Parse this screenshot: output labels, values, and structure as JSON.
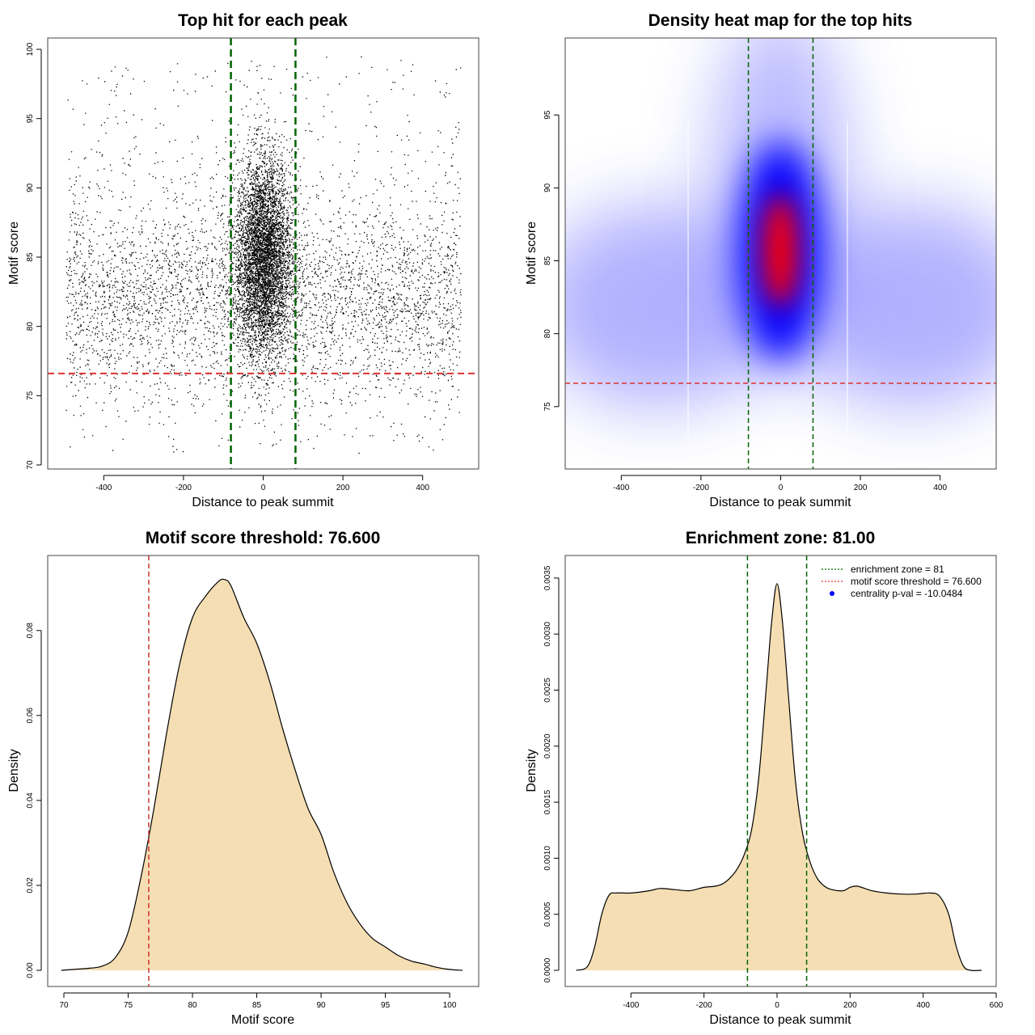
{
  "chart_data": [
    {
      "type": "scatter",
      "title": "Top hit for each peak",
      "xlabel": "Distance to peak summit",
      "ylabel": "Motif score",
      "xlim": [
        -500,
        500
      ],
      "ylim": [
        70,
        100
      ],
      "xticks": [
        -400,
        -200,
        0,
        200,
        400
      ],
      "yticks": [
        70,
        75,
        80,
        85,
        90,
        95,
        100
      ],
      "vlines": [
        -81,
        81
      ],
      "hline": 76.6,
      "colors": {
        "points": "#000000",
        "vlines": "#006400",
        "hline": "#e03030"
      },
      "point_count_approx": 30000
    },
    {
      "type": "heatmap",
      "title": "Density heat map for the top hits",
      "xlabel": "Distance to peak summit",
      "ylabel": "Motif score",
      "xlim": [
        -500,
        500
      ],
      "ylim": [
        71,
        99.5
      ],
      "xticks": [
        -400,
        -200,
        0,
        200,
        400
      ],
      "yticks": [
        75,
        80,
        85,
        90,
        95
      ],
      "vlines": [
        -81,
        81
      ],
      "hline": 76.6,
      "colors": {
        "low": "#ffffff",
        "mid": "#0000ff",
        "high": "#ff0000",
        "vlines": "#006400",
        "hline": "#e03030"
      }
    },
    {
      "type": "area",
      "title": "Motif score threshold: 76.600",
      "xlabel": "Motif score",
      "ylabel": "Density",
      "xlim": [
        70,
        101
      ],
      "ylim": [
        0,
        0.095
      ],
      "xticks": [
        70,
        75,
        80,
        85,
        90,
        95,
        100
      ],
      "yticks": [
        0.0,
        0.02,
        0.04,
        0.06,
        0.08
      ],
      "ytick_labels": [
        "0.00",
        "0.02",
        "0.04",
        "0.06",
        "0.08"
      ],
      "x": [
        69.8,
        72,
        73,
        74,
        75,
        76,
        77,
        78,
        79,
        80,
        81,
        82,
        82.5,
        83,
        84,
        85,
        86,
        87,
        88,
        89,
        90,
        91,
        92,
        93,
        94,
        95,
        96,
        97,
        98,
        99,
        100,
        101
      ],
      "y": [
        0.0,
        0.0005,
        0.001,
        0.003,
        0.009,
        0.022,
        0.038,
        0.056,
        0.072,
        0.083,
        0.088,
        0.0915,
        0.092,
        0.0905,
        0.083,
        0.077,
        0.068,
        0.057,
        0.047,
        0.038,
        0.032,
        0.023,
        0.016,
        0.011,
        0.0075,
        0.0055,
        0.0035,
        0.0022,
        0.0015,
        0.0007,
        0.0002,
        0.0
      ],
      "vline": 76.6,
      "colors": {
        "fill": "#f5deb3",
        "stroke": "#000000",
        "vline": "#cc3333"
      }
    },
    {
      "type": "area",
      "title": "Enrichment zone: 81.00",
      "xlabel": "Distance to peak summit",
      "ylabel": "Density",
      "xlim": [
        -580,
        600
      ],
      "ylim": [
        0,
        0.0036
      ],
      "xticks": [
        -400,
        -200,
        0,
        200,
        400,
        600
      ],
      "yticks": [
        0.0,
        0.0005,
        0.001,
        0.0015,
        0.002,
        0.0025,
        0.003,
        0.0035
      ],
      "ytick_labels": [
        "0.0000",
        "0.0005",
        "0.0010",
        "0.0015",
        "0.0020",
        "0.0025",
        "0.0030",
        "0.0035"
      ],
      "x": [
        -550,
        -520,
        -500,
        -480,
        -460,
        -440,
        -400,
        -350,
        -320,
        -280,
        -240,
        -200,
        -170,
        -150,
        -130,
        -110,
        -90,
        -70,
        -50,
        -30,
        -15,
        0,
        15,
        30,
        50,
        70,
        90,
        110,
        130,
        150,
        180,
        200,
        220,
        260,
        300,
        340,
        380,
        420,
        445,
        470,
        490,
        510,
        530,
        560
      ],
      "y": [
        0,
        3e-05,
        0.0002,
        0.0005,
        0.00067,
        0.00069,
        0.00069,
        0.00071,
        0.00073,
        0.00072,
        0.00071,
        0.00074,
        0.00075,
        0.00077,
        0.00082,
        0.0009,
        0.00103,
        0.00125,
        0.00172,
        0.0025,
        0.0031,
        0.00345,
        0.0031,
        0.0025,
        0.0017,
        0.00122,
        0.00097,
        0.00082,
        0.00075,
        0.00072,
        0.00071,
        0.00074,
        0.00075,
        0.00071,
        0.00069,
        0.00068,
        0.00068,
        0.00069,
        0.00066,
        0.0005,
        0.00022,
        4e-05,
        0.0,
        0.0
      ],
      "vlines": [
        -81,
        81
      ],
      "colors": {
        "fill": "#f5deb3",
        "stroke": "#000000",
        "vlines": "#006400"
      },
      "legend": {
        "position": "top-right",
        "entries": [
          {
            "label": "enrichment zone = 81",
            "color": "#006400",
            "style": "dotted-line"
          },
          {
            "label": "motif score threshold = 76.600",
            "color": "#e03030",
            "style": "dotted-line"
          },
          {
            "label": "centrality p-val = -10.0484",
            "color": "#0000ff",
            "style": "point"
          }
        ]
      }
    }
  ]
}
